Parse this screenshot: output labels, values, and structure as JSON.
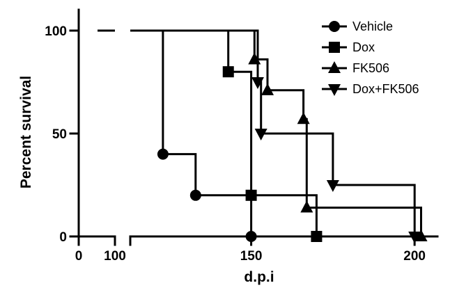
{
  "chart_data": {
    "type": "line",
    "subtype": "kaplan-meier survival curve (step)",
    "xlabel": "d.p.i",
    "ylabel": "Percent survival",
    "x_axis_segments": [
      {
        "range": [
          0,
          100
        ],
        "ticks": [
          "0",
          "100"
        ]
      },
      {
        "range": [
          113,
          207
        ],
        "ticks": [
          "150",
          "200"
        ]
      }
    ],
    "x_tick_values": [
      0,
      100,
      150,
      200
    ],
    "y_ticks": [
      "0",
      "50",
      "100"
    ],
    "ylim": [
      0,
      100
    ],
    "grid": false,
    "legend_position": "top-right",
    "series": [
      {
        "name": "Vehicle",
        "marker": "circle",
        "steps": [
          [
            0,
            100
          ],
          [
            123,
            100
          ],
          [
            123,
            40
          ],
          [
            133,
            40
          ],
          [
            133,
            20
          ],
          [
            150,
            20
          ],
          [
            150,
            0
          ]
        ],
        "events": [
          [
            123,
            40
          ],
          [
            133,
            20
          ],
          [
            150,
            0
          ]
        ]
      },
      {
        "name": "Dox",
        "marker": "square",
        "steps": [
          [
            0,
            100
          ],
          [
            143,
            100
          ],
          [
            143,
            80
          ],
          [
            150,
            80
          ],
          [
            150,
            20
          ],
          [
            170,
            20
          ],
          [
            170,
            0
          ]
        ],
        "events": [
          [
            143,
            80
          ],
          [
            150,
            20
          ],
          [
            170,
            0
          ]
        ]
      },
      {
        "name": "FK506",
        "marker": "triangle-up",
        "steps": [
          [
            0,
            100
          ],
          [
            151,
            100
          ],
          [
            151,
            86
          ],
          [
            155,
            86
          ],
          [
            155,
            71
          ],
          [
            166,
            71
          ],
          [
            166,
            57
          ],
          [
            167,
            57
          ],
          [
            167,
            14
          ],
          [
            202,
            14
          ],
          [
            202,
            0
          ]
        ],
        "events": [
          [
            151,
            86
          ],
          [
            155,
            71
          ],
          [
            166,
            57
          ],
          [
            167,
            14
          ],
          [
            202,
            0
          ]
        ]
      },
      {
        "name": "Dox+FK506",
        "marker": "triangle-down",
        "steps": [
          [
            0,
            100
          ],
          [
            152,
            100
          ],
          [
            152,
            75
          ],
          [
            153,
            75
          ],
          [
            153,
            50
          ],
          [
            175,
            50
          ],
          [
            175,
            25
          ],
          [
            200,
            25
          ],
          [
            200,
            0
          ]
        ],
        "events": [
          [
            152,
            75
          ],
          [
            153,
            50
          ],
          [
            175,
            25
          ],
          [
            200,
            0
          ]
        ]
      }
    ]
  }
}
